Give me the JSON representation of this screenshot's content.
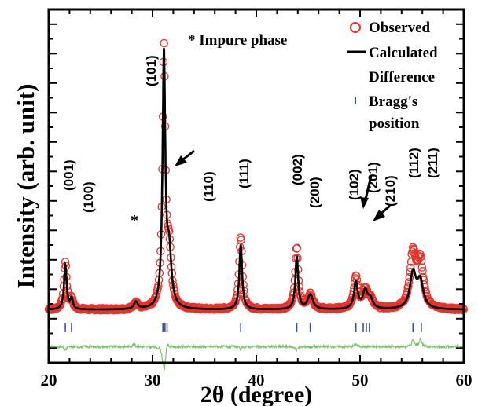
{
  "chart_data": {
    "type": "line",
    "title": "",
    "xlabel": "2θ (degree)",
    "ylabel": "Intensity (arb. unit)",
    "xlim": [
      20,
      60
    ],
    "ylim": [
      -15,
      105
    ],
    "xticks": [
      "20",
      "30",
      "40",
      "50",
      "60"
    ],
    "colors": {
      "observed": "#e8322a",
      "calculated": "#000000",
      "difference": "#7dc36b",
      "bragg": "#3a4fa0"
    },
    "legend": {
      "placement": "top-right",
      "entries": [
        {
          "label": "Observed",
          "marker": "circle"
        },
        {
          "label": "Calculated",
          "marker": "line"
        },
        {
          "label": "Difference",
          "marker": "none"
        },
        {
          "label": "Bragg's",
          "marker": "tick"
        },
        {
          "label": "position",
          "marker": "none"
        }
      ]
    },
    "peaks": [
      {
        "two_theta": 21.6,
        "height": 15.0,
        "width": 0.15
      },
      {
        "two_theta": 22.2,
        "height": 3.5,
        "width": 0.15
      },
      {
        "two_theta": 28.4,
        "height": 2.5,
        "width": 0.22
      },
      {
        "two_theta": 31.1,
        "height": 85.0,
        "width": 0.16
      },
      {
        "two_theta": 31.6,
        "height": 18.0,
        "width": 0.26
      },
      {
        "two_theta": 38.5,
        "height": 22.0,
        "width": 0.16
      },
      {
        "two_theta": 43.9,
        "height": 18.0,
        "width": 0.16
      },
      {
        "two_theta": 45.2,
        "height": 5.0,
        "width": 0.3
      },
      {
        "two_theta": 49.6,
        "height": 9.0,
        "width": 0.22
      },
      {
        "two_theta": 50.5,
        "height": 6.0,
        "width": 0.28
      },
      {
        "two_theta": 51.0,
        "height": 3.0,
        "width": 0.28
      },
      {
        "two_theta": 55.1,
        "height": 12.0,
        "width": 0.35
      },
      {
        "two_theta": 55.8,
        "height": 9.0,
        "width": 0.35
      }
    ],
    "baseline": 3.0,
    "observed_offsets": [
      {
        "two_theta": 21.6,
        "extra": 1.0
      },
      {
        "two_theta": 31.1,
        "extra": 2.0
      },
      {
        "two_theta": 38.5,
        "extra": 3.0
      },
      {
        "two_theta": 43.9,
        "extra": 3.0
      },
      {
        "two_theta": 49.6,
        "extra": 2.0
      },
      {
        "two_theta": 55.1,
        "extra": 6.0
      },
      {
        "two_theta": 55.8,
        "extra": 6.0
      }
    ],
    "bragg_positions": [
      21.6,
      22.2,
      31.0,
      31.2,
      31.4,
      38.5,
      43.9,
      45.2,
      49.6,
      50.3,
      50.6,
      50.9,
      55.1,
      55.9
    ],
    "bragg_level": -3.0,
    "difference_level": -9.5,
    "difference_features": [
      {
        "two_theta": 21.6,
        "amp": -1.2
      },
      {
        "two_theta": 28.2,
        "amp": 1.0
      },
      {
        "two_theta": 31.0,
        "amp": -3.0
      },
      {
        "two_theta": 31.15,
        "amp": -7.0
      },
      {
        "two_theta": 31.45,
        "amp": 2.0
      },
      {
        "two_theta": 38.5,
        "amp": -1.0
      },
      {
        "two_theta": 43.9,
        "amp": -1.2
      },
      {
        "two_theta": 49.6,
        "amp": 1.0
      },
      {
        "two_theta": 55.1,
        "amp": 2.5
      },
      {
        "two_theta": 55.8,
        "amp": 3.0
      }
    ],
    "annotations": [
      {
        "text": "* Impure phase"
      },
      {
        "text": "*"
      },
      {
        "text": "(001)"
      },
      {
        "text": "(100)"
      },
      {
        "text": "(101)"
      },
      {
        "text": "(110)"
      },
      {
        "text": "(111)"
      },
      {
        "text": "(002)"
      },
      {
        "text": "(200)"
      },
      {
        "text": "(102)"
      },
      {
        "text": "(201)"
      },
      {
        "text": "(210)"
      },
      {
        "text": "(112)"
      },
      {
        "text": "(211)"
      }
    ]
  }
}
